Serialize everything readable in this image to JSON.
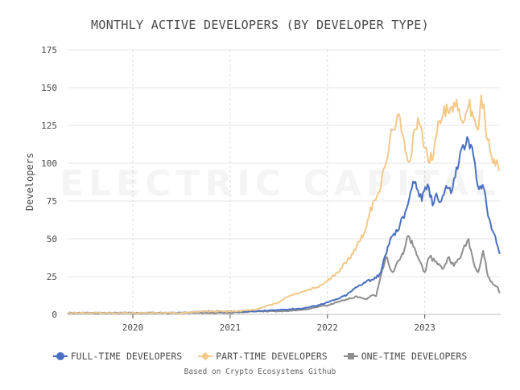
{
  "chart_data": {
    "type": "line",
    "title": "MONTHLY ACTIVE DEVELOPERS (BY DEVELOPER TYPE)",
    "ylabel": "Developers",
    "xlabel": "",
    "ylim": [
      0,
      175
    ],
    "xlim": [
      2019.33,
      2023.78
    ],
    "yticks": [
      0,
      25,
      50,
      75,
      100,
      125,
      150,
      175
    ],
    "xticks": [
      2020,
      2021,
      2022,
      2023
    ],
    "xtick_labels": [
      "2020",
      "2021",
      "2022",
      "2023"
    ],
    "grid": true,
    "watermark": "ELECTRIC CAPITAL",
    "caption": "Based on Crypto Ecosystems Github",
    "legend_position": "bottom",
    "series": [
      {
        "name": "FULL-TIME DEVELOPERS",
        "color": "#4a6fc2",
        "marker": "circle",
        "x": [
          2019.33,
          2019.5,
          2019.75,
          2020.0,
          2020.25,
          2020.5,
          2020.75,
          2021.0,
          2021.25,
          2021.5,
          2021.75,
          2021.9,
          2022.0,
          2022.1,
          2022.2,
          2022.3,
          2022.4,
          2022.5,
          2022.55,
          2022.62,
          2022.67,
          2022.72,
          2022.8,
          2022.88,
          2022.93,
          2022.97,
          2023.03,
          2023.08,
          2023.12,
          2023.17,
          2023.22,
          2023.27,
          2023.3,
          2023.35,
          2023.38,
          2023.45,
          2023.5,
          2023.53,
          2023.57,
          2023.62,
          2023.65,
          2023.7,
          2023.75,
          2023.77
        ],
        "values": [
          1,
          1,
          1,
          1,
          1,
          1,
          2,
          2,
          2,
          3,
          4,
          6,
          8,
          10,
          13,
          18,
          22,
          24,
          28,
          45,
          52,
          55,
          68,
          88,
          82,
          75,
          86,
          72,
          80,
          75,
          85,
          80,
          90,
          100,
          110,
          115,
          105,
          90,
          85,
          80,
          65,
          55,
          45,
          40
        ]
      },
      {
        "name": "PART-TIME DEVELOPERS",
        "color": "#f2c98a",
        "marker": "diamond",
        "x": [
          2019.33,
          2019.5,
          2019.75,
          2020.0,
          2020.25,
          2020.5,
          2020.75,
          2021.0,
          2021.25,
          2021.5,
          2021.6,
          2021.75,
          2021.9,
          2022.0,
          2022.1,
          2022.2,
          2022.3,
          2022.4,
          2022.47,
          2022.55,
          2022.6,
          2022.67,
          2022.72,
          2022.8,
          2022.85,
          2022.88,
          2022.93,
          2023.0,
          2023.05,
          2023.1,
          2023.15,
          2023.2,
          2023.25,
          2023.3,
          2023.38,
          2023.45,
          2023.5,
          2023.55,
          2023.58,
          2023.62,
          2023.67,
          2023.7,
          2023.75,
          2023.77
        ],
        "values": [
          1,
          1,
          1,
          1,
          1,
          1,
          2,
          2,
          3,
          8,
          12,
          15,
          18,
          22,
          28,
          35,
          45,
          58,
          75,
          85,
          100,
          122,
          132,
          108,
          102,
          118,
          130,
          110,
          100,
          112,
          128,
          138,
          133,
          140,
          128,
          138,
          130,
          122,
          145,
          128,
          108,
          100,
          100,
          95
        ]
      },
      {
        "name": "ONE-TIME DEVELOPERS",
        "color": "#8d8d8d",
        "marker": "square",
        "x": [
          2019.33,
          2019.5,
          2019.75,
          2020.0,
          2020.25,
          2020.5,
          2020.75,
          2021.0,
          2021.25,
          2021.5,
          2021.75,
          2021.9,
          2022.0,
          2022.1,
          2022.2,
          2022.3,
          2022.4,
          2022.47,
          2022.5,
          2022.55,
          2022.6,
          2022.67,
          2022.72,
          2022.78,
          2022.83,
          2022.88,
          2022.93,
          2023.0,
          2023.05,
          2023.12,
          2023.18,
          2023.25,
          2023.3,
          2023.38,
          2023.45,
          2023.5,
          2023.55,
          2023.6,
          2023.65,
          2023.7,
          2023.75,
          2023.77
        ],
        "values": [
          1,
          1,
          1,
          1,
          1,
          1,
          1,
          1,
          2,
          2,
          3,
          5,
          6,
          8,
          10,
          12,
          10,
          13,
          12,
          26,
          38,
          28,
          35,
          40,
          52,
          45,
          38,
          28,
          38,
          35,
          30,
          38,
          32,
          40,
          50,
          35,
          28,
          42,
          25,
          20,
          18,
          14
        ]
      }
    ]
  }
}
